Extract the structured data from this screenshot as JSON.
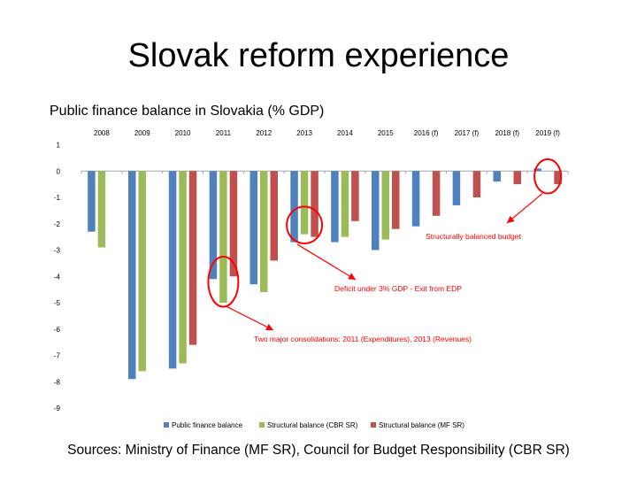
{
  "slide": {
    "title": "Slovak reform experience",
    "source": "Sources: Ministry of Finance (MF SR), Council for Budget Responsibility (CBR SR)"
  },
  "chart_data": {
    "type": "bar",
    "title": "Public finance balance in Slovakia (% GDP)",
    "xlabel": "",
    "ylabel": "",
    "ylim": [
      -9,
      1
    ],
    "yticks": [
      1,
      0,
      -1,
      -2,
      -3,
      -4,
      -5,
      -6,
      -7,
      -8,
      -9
    ],
    "grid": false,
    "legend_position": "bottom",
    "categories": [
      "2008",
      "2009",
      "2010",
      "2011",
      "2012",
      "2013",
      "2014",
      "2015",
      "2016 (f)",
      "2017 (f)",
      "2018 (f)",
      "2019 (f)"
    ],
    "series": [
      {
        "name": "Public finance balance",
        "color": "#4F81BD",
        "values": [
          -2.3,
          -7.9,
          -7.5,
          -4.1,
          -4.3,
          -2.7,
          -2.7,
          -3.0,
          -2.1,
          -1.3,
          -0.4,
          0.1
        ]
      },
      {
        "name": "Structural balance (CBR SR)",
        "color": "#9BBB59",
        "values": [
          -2.9,
          -7.6,
          -7.3,
          -5.0,
          -4.6,
          -2.4,
          -2.5,
          -2.6,
          null,
          null,
          null,
          null
        ]
      },
      {
        "name": "Structural balance (MF SR)",
        "color": "#C0504D",
        "values": [
          null,
          null,
          -6.6,
          -4.0,
          -3.4,
          -2.5,
          -1.9,
          -2.2,
          -1.7,
          -1.0,
          -0.5,
          -0.5
        ]
      }
    ],
    "annotations": [
      {
        "text": "Structurally balanced budget"
      },
      {
        "text": "Deficit under 3% GDP - Exit from EDP"
      },
      {
        "text": "Two major consolidations: 2011 (Expenditures), 2013 (Revenues)"
      }
    ]
  }
}
